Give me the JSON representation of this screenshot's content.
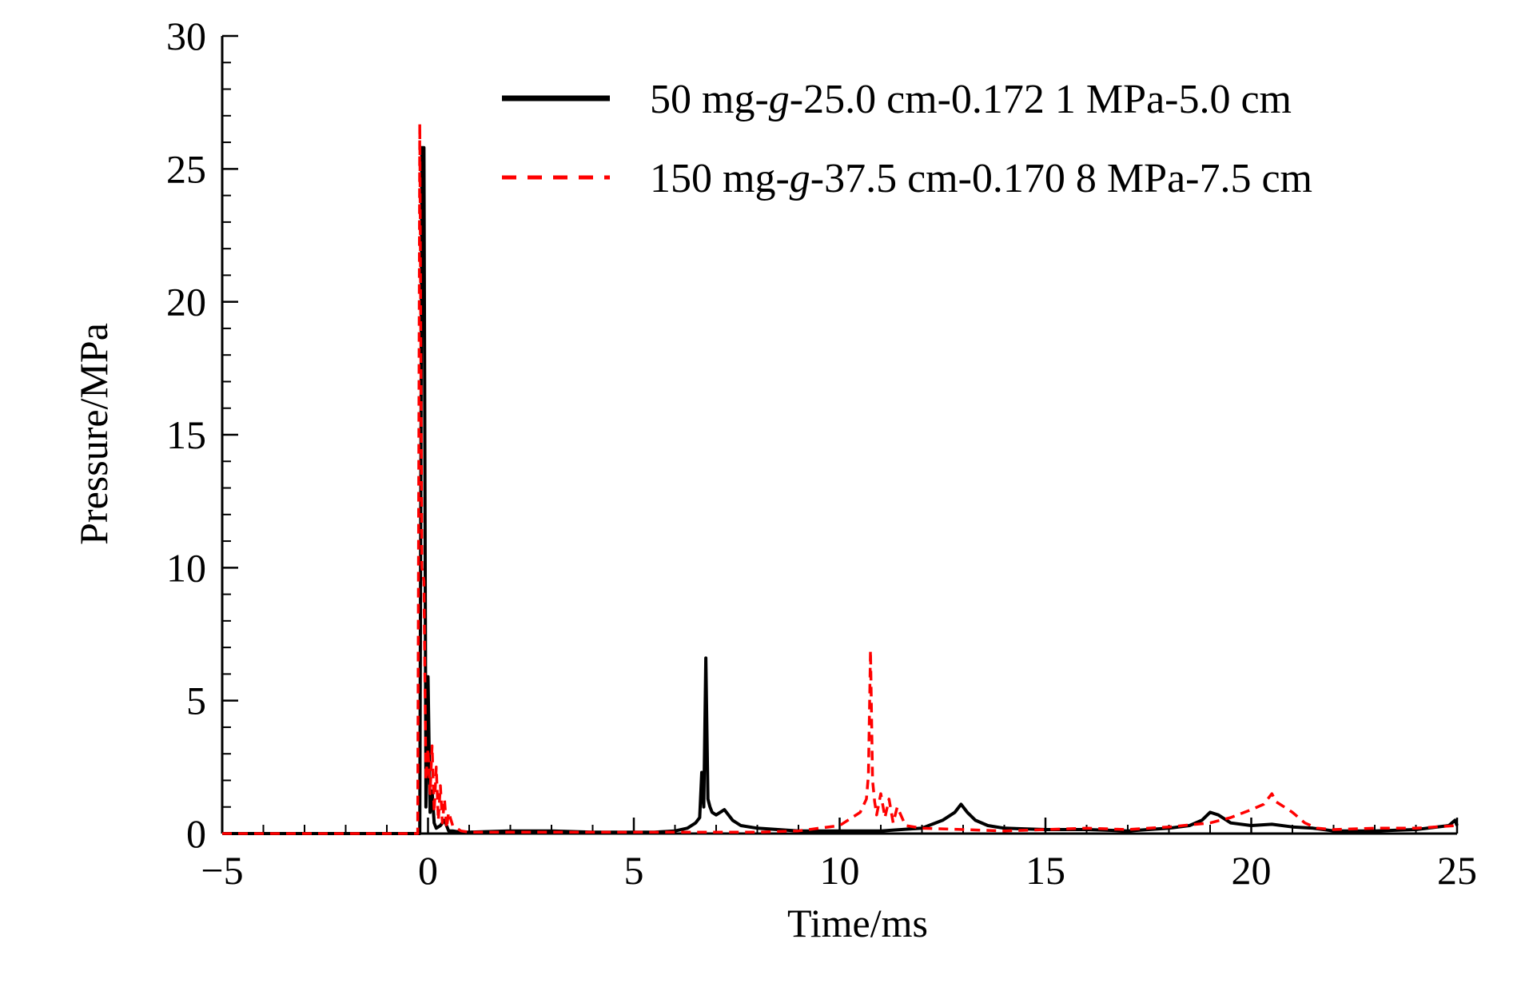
{
  "chart_data": {
    "type": "line",
    "title": "",
    "xlabel": "Time/ms",
    "ylabel": "Pressure/MPa",
    "xlim": [
      -5,
      25
    ],
    "ylim": [
      0,
      30
    ],
    "xticks": [
      -5,
      0,
      5,
      10,
      15,
      20,
      25
    ],
    "xtick_labels": [
      "−5",
      "0",
      "5",
      "10",
      "15",
      "20",
      "25"
    ],
    "yticks": [
      0,
      5,
      10,
      15,
      20,
      25,
      30
    ],
    "ytick_labels": [
      "0",
      "5",
      "10",
      "15",
      "20",
      "25",
      "30"
    ],
    "grid": false,
    "legend_position": "top-right",
    "series": [
      {
        "name_parts": [
          "50 mg-",
          "g",
          "-25.0 cm-0.172 1 MPa-5.0 cm"
        ],
        "color": "#000000",
        "style": "solid",
        "x": [
          -5,
          -0.2,
          -0.15,
          -0.1,
          -0.05,
          0.0,
          0.05,
          0.1,
          0.15,
          0.2,
          0.3,
          0.4,
          0.5,
          0.6,
          0.8,
          1.0,
          2.0,
          3.0,
          4.0,
          5.0,
          5.5,
          6.0,
          6.3,
          6.5,
          6.6,
          6.65,
          6.7,
          6.75,
          6.8,
          6.85,
          6.9,
          7.0,
          7.2,
          7.4,
          7.6,
          8.0,
          9.0,
          10.0,
          11.0,
          12.0,
          12.5,
          12.8,
          12.95,
          13.1,
          13.3,
          13.6,
          14.0,
          15.0,
          16.0,
          17.0,
          18.0,
          18.5,
          18.8,
          19.0,
          19.2,
          19.5,
          20.0,
          20.5,
          21.0,
          21.5,
          22.0,
          23.0,
          24.0,
          24.8,
          24.95,
          25.0
        ],
        "y": [
          0,
          0,
          25.8,
          25.8,
          1.0,
          5.9,
          0.8,
          1.6,
          0.4,
          0.2,
          0.3,
          0.5,
          0.1,
          0.1,
          0.05,
          0.05,
          0.1,
          0.1,
          0.05,
          0.05,
          0.05,
          0.1,
          0.2,
          0.4,
          0.6,
          2.3,
          1.0,
          6.6,
          1.3,
          1.0,
          0.8,
          0.7,
          0.9,
          0.5,
          0.3,
          0.2,
          0.1,
          0.1,
          0.1,
          0.2,
          0.5,
          0.8,
          1.1,
          0.8,
          0.5,
          0.3,
          0.2,
          0.15,
          0.15,
          0.1,
          0.2,
          0.3,
          0.5,
          0.8,
          0.7,
          0.4,
          0.3,
          0.35,
          0.25,
          0.2,
          0.1,
          0.1,
          0.15,
          0.3,
          0.5,
          0.3
        ]
      },
      {
        "name_parts": [
          "150 mg-",
          "g",
          "-37.5 cm-0.170 8 MPa-7.5 cm"
        ],
        "color": "#ff0000",
        "style": "dashed",
        "x": [
          -5,
          -0.25,
          -0.2,
          -0.15,
          -0.1,
          -0.05,
          0.0,
          0.05,
          0.1,
          0.15,
          0.2,
          0.25,
          0.3,
          0.35,
          0.4,
          0.45,
          0.5,
          0.6,
          0.7,
          0.8,
          1.0,
          2.0,
          3.0,
          4.0,
          5.0,
          6.0,
          7.0,
          8.0,
          9.0,
          9.5,
          10.0,
          10.3,
          10.5,
          10.65,
          10.7,
          10.75,
          10.8,
          10.85,
          10.9,
          11.0,
          11.1,
          11.2,
          11.3,
          11.4,
          11.6,
          12.0,
          13.0,
          14.0,
          15.0,
          16.0,
          17.0,
          18.0,
          19.0,
          19.5,
          20.0,
          20.3,
          20.5,
          20.6,
          20.8,
          21.0,
          21.3,
          21.6,
          22.0,
          23.0,
          24.0,
          25.0
        ],
        "y": [
          0,
          0,
          26.7,
          10.0,
          9.5,
          2.0,
          3.2,
          1.5,
          3.3,
          0.8,
          2.5,
          0.5,
          1.8,
          0.4,
          1.3,
          0.2,
          0.8,
          0.3,
          0.2,
          0.1,
          0.05,
          0.05,
          0.05,
          0.05,
          0.05,
          0.05,
          0.05,
          0.05,
          0.1,
          0.2,
          0.3,
          0.6,
          0.8,
          1.3,
          2.2,
          6.9,
          2.0,
          1.2,
          0.7,
          1.5,
          0.6,
          1.3,
          0.4,
          1.0,
          0.3,
          0.2,
          0.15,
          0.1,
          0.15,
          0.2,
          0.15,
          0.25,
          0.4,
          0.6,
          0.9,
          1.1,
          1.5,
          1.2,
          1.0,
          0.8,
          0.4,
          0.2,
          0.15,
          0.2,
          0.2,
          0.3
        ]
      }
    ]
  }
}
